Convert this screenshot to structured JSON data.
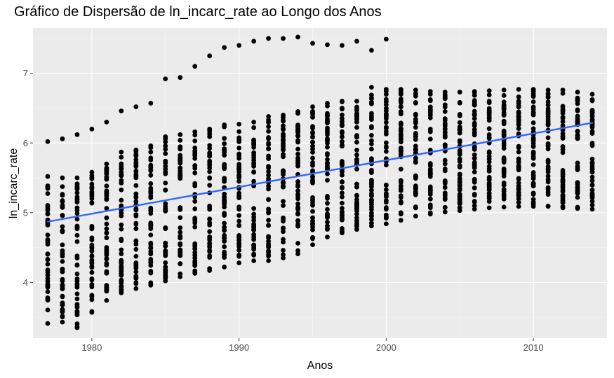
{
  "chart_data": {
    "type": "scatter",
    "title": "Gráfico de Dispersão de ln_incarc_rate ao Longo dos Anos",
    "xlabel": "Anos",
    "ylabel": "ln_incarc_rate",
    "xlim": [
      1976,
      2015
    ],
    "ylim": [
      3.2,
      7.65
    ],
    "x_ticks": [
      1980,
      1990,
      2000,
      2010
    ],
    "x_tick_labels": [
      "1980",
      "1990",
      "2000",
      "2010"
    ],
    "y_ticks": [
      4,
      5,
      6,
      7
    ],
    "y_tick_labels": [
      "4",
      "5",
      "6",
      "7"
    ],
    "grid": true,
    "point_color": "#000000",
    "trend_line": {
      "x": [
        1977,
        2014
      ],
      "y": [
        4.87,
        6.29
      ],
      "color": "#3366FF"
    },
    "outlier_series": {
      "x": [
        1977,
        1978,
        1979,
        1980,
        1981,
        1982,
        1983,
        1984,
        1985,
        1986,
        1987,
        1988,
        1989,
        1990,
        1991,
        1992,
        1993,
        1994,
        1995,
        1996,
        1997,
        1998,
        1999,
        2000
      ],
      "y": [
        6.02,
        6.06,
        6.12,
        6.2,
        6.3,
        6.46,
        6.52,
        6.57,
        6.92,
        6.94,
        7.1,
        7.25,
        7.37,
        7.4,
        7.46,
        7.5,
        7.5,
        7.52,
        7.43,
        7.41,
        7.4,
        7.46,
        7.33,
        7.49
      ]
    },
    "yearly_ranges": [
      {
        "year": 1977,
        "min": 3.41,
        "max": 5.52
      },
      {
        "year": 1978,
        "min": 3.43,
        "max": 5.5
      },
      {
        "year": 1979,
        "min": 3.35,
        "max": 5.5
      },
      {
        "year": 1980,
        "min": 3.57,
        "max": 5.58
      },
      {
        "year": 1981,
        "min": 3.74,
        "max": 5.7
      },
      {
        "year": 1982,
        "min": 3.85,
        "max": 5.87
      },
      {
        "year": 1983,
        "min": 3.91,
        "max": 5.9
      },
      {
        "year": 1984,
        "min": 3.96,
        "max": 5.96
      },
      {
        "year": 1985,
        "min": 4.02,
        "max": 6.09
      },
      {
        "year": 1986,
        "min": 4.08,
        "max": 6.12
      },
      {
        "year": 1987,
        "min": 4.13,
        "max": 6.16
      },
      {
        "year": 1988,
        "min": 4.17,
        "max": 6.2
      },
      {
        "year": 1989,
        "min": 4.22,
        "max": 6.26
      },
      {
        "year": 1990,
        "min": 4.28,
        "max": 6.27
      },
      {
        "year": 1991,
        "min": 4.31,
        "max": 6.3
      },
      {
        "year": 1992,
        "min": 4.31,
        "max": 6.38
      },
      {
        "year": 1993,
        "min": 4.35,
        "max": 6.4
      },
      {
        "year": 1994,
        "min": 4.41,
        "max": 6.45
      },
      {
        "year": 1995,
        "min": 4.54,
        "max": 6.52
      },
      {
        "year": 1996,
        "min": 4.65,
        "max": 6.57
      },
      {
        "year": 1997,
        "min": 4.71,
        "max": 6.6
      },
      {
        "year": 1998,
        "min": 4.76,
        "max": 6.6
      },
      {
        "year": 1999,
        "min": 4.81,
        "max": 6.8
      },
      {
        "year": 2000,
        "min": 4.84,
        "max": 6.77
      },
      {
        "year": 2001,
        "min": 4.89,
        "max": 6.77
      },
      {
        "year": 2002,
        "min": 4.95,
        "max": 6.76
      },
      {
        "year": 2003,
        "min": 4.98,
        "max": 6.74
      },
      {
        "year": 2004,
        "min": 5.01,
        "max": 6.73
      },
      {
        "year": 2005,
        "min": 5.03,
        "max": 6.73
      },
      {
        "year": 2006,
        "min": 5.05,
        "max": 6.74
      },
      {
        "year": 2007,
        "min": 5.07,
        "max": 6.75
      },
      {
        "year": 2008,
        "min": 5.08,
        "max": 6.76
      },
      {
        "year": 2009,
        "min": 5.09,
        "max": 6.77
      },
      {
        "year": 2010,
        "min": 5.09,
        "max": 6.77
      },
      {
        "year": 2011,
        "min": 5.09,
        "max": 6.76
      },
      {
        "year": 2012,
        "min": 5.07,
        "max": 6.76
      },
      {
        "year": 2013,
        "min": 5.06,
        "max": 6.73
      },
      {
        "year": 2014,
        "min": 5.05,
        "max": 6.7
      }
    ]
  }
}
